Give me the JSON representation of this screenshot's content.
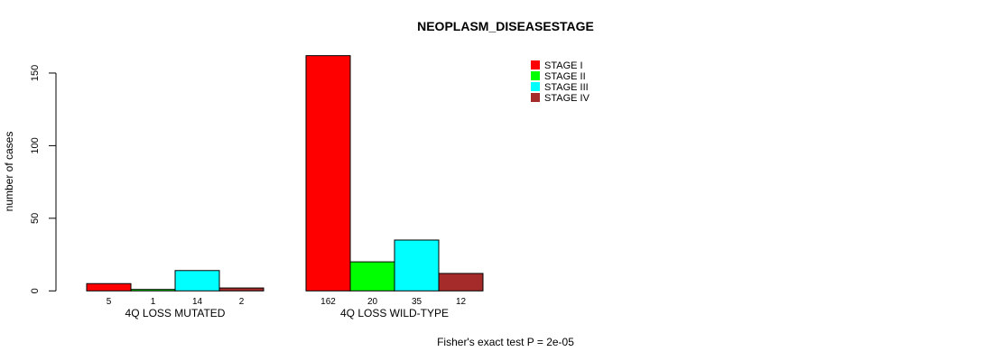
{
  "title": "NEOPLASM_DISEASESTAGE",
  "footer": "Fisher's exact test P = 2e-05",
  "ylabel": "number of cases",
  "chart_data": {
    "type": "bar",
    "title": "NEOPLASM_DISEASESTAGE",
    "xlabel": "",
    "ylabel": "number of cases",
    "categories": [
      "4Q LOSS MUTATED",
      "4Q LOSS WILD-TYPE"
    ],
    "series": [
      {
        "name": "STAGE I",
        "color": "#ff0000",
        "values": [
          5,
          162
        ]
      },
      {
        "name": "STAGE II",
        "color": "#00ff00",
        "values": [
          1,
          20
        ]
      },
      {
        "name": "STAGE III",
        "color": "#00ffff",
        "values": [
          14,
          35
        ]
      },
      {
        "name": "STAGE IV",
        "color": "#a52a2a",
        "values": [
          2,
          12
        ]
      }
    ],
    "yticks": [
      0,
      50,
      100,
      150
    ],
    "ylim": [
      0,
      162
    ],
    "grid": false,
    "legend_position": "top-right",
    "bar_labels_shown": true,
    "bar_border_color": "#000000",
    "annotation": "Fisher's exact test P = 2e-05"
  }
}
